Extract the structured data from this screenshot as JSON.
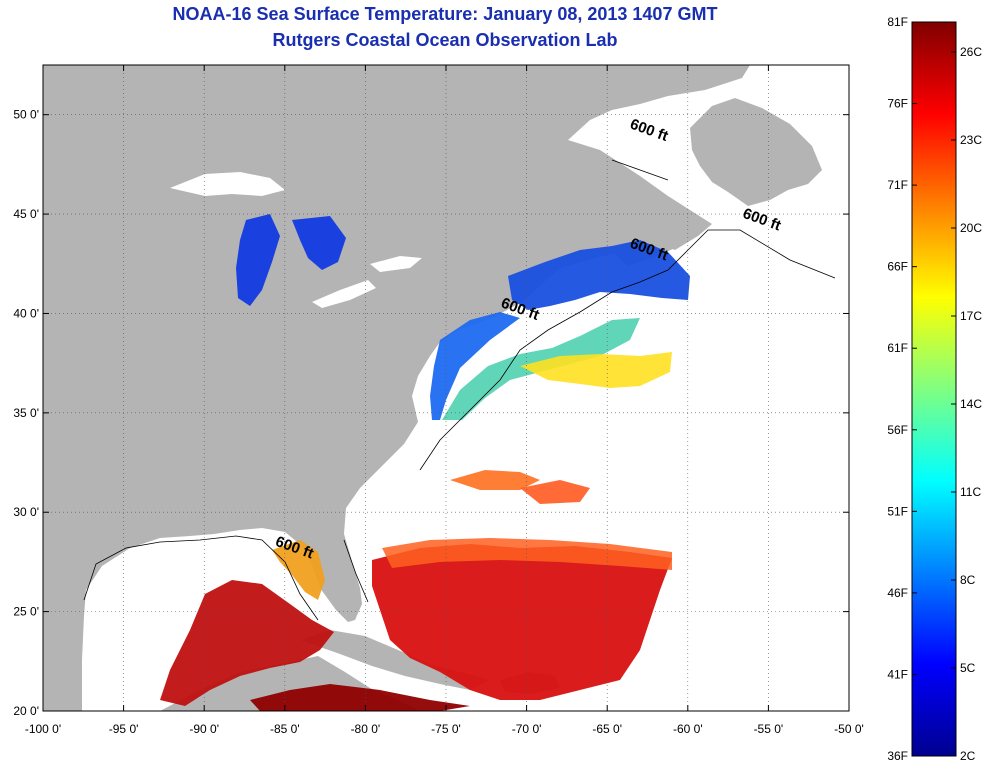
{
  "title": "NOAA-16 Sea Surface Temperature:  January 08, 2013 1407 GMT",
  "subtitle": "Rutgers Coastal Ocean Observation Lab",
  "map": {
    "lon_range": [
      -100,
      -50
    ],
    "lat_range": [
      20,
      52.5
    ],
    "lon_ticks": [
      "-100 0'",
      "-95 0'",
      "-90 0'",
      "-85 0'",
      "-80 0'",
      "-75 0'",
      "-70 0'",
      "-65 0'",
      "-60 0'",
      "-55 0'",
      "-50 0'"
    ],
    "lat_ticks": [
      "20 0'",
      "25 0'",
      "30 0'",
      "35 0'",
      "40 0'",
      "45 0'",
      "50 0'"
    ],
    "grid": true,
    "land_color": "#b4b4b4",
    "contours": [
      {
        "label": "600 ft",
        "lon": -62.5,
        "lat": 49
      },
      {
        "label": "600 ft",
        "lon": -55.5,
        "lat": 44.5
      },
      {
        "label": "600 ft",
        "lon": -62.5,
        "lat": 43
      },
      {
        "label": "600 ft",
        "lon": -70.5,
        "lat": 40
      },
      {
        "label": "600 ft",
        "lon": -84.5,
        "lat": 28
      }
    ]
  },
  "colorbar": {
    "f_labels": [
      "81F",
      "76F",
      "71F",
      "66F",
      "61F",
      "56F",
      "51F",
      "46F",
      "41F",
      "36F"
    ],
    "c_labels": [
      "26C",
      "23C",
      "20C",
      "17C",
      "14C",
      "11C",
      "8C",
      "5C",
      "2C"
    ],
    "colors": [
      "#800000",
      "#ff0000",
      "#ff8000",
      "#ffff00",
      "#80ff80",
      "#00ffff",
      "#0080ff",
      "#0000ff",
      "#000090"
    ]
  }
}
